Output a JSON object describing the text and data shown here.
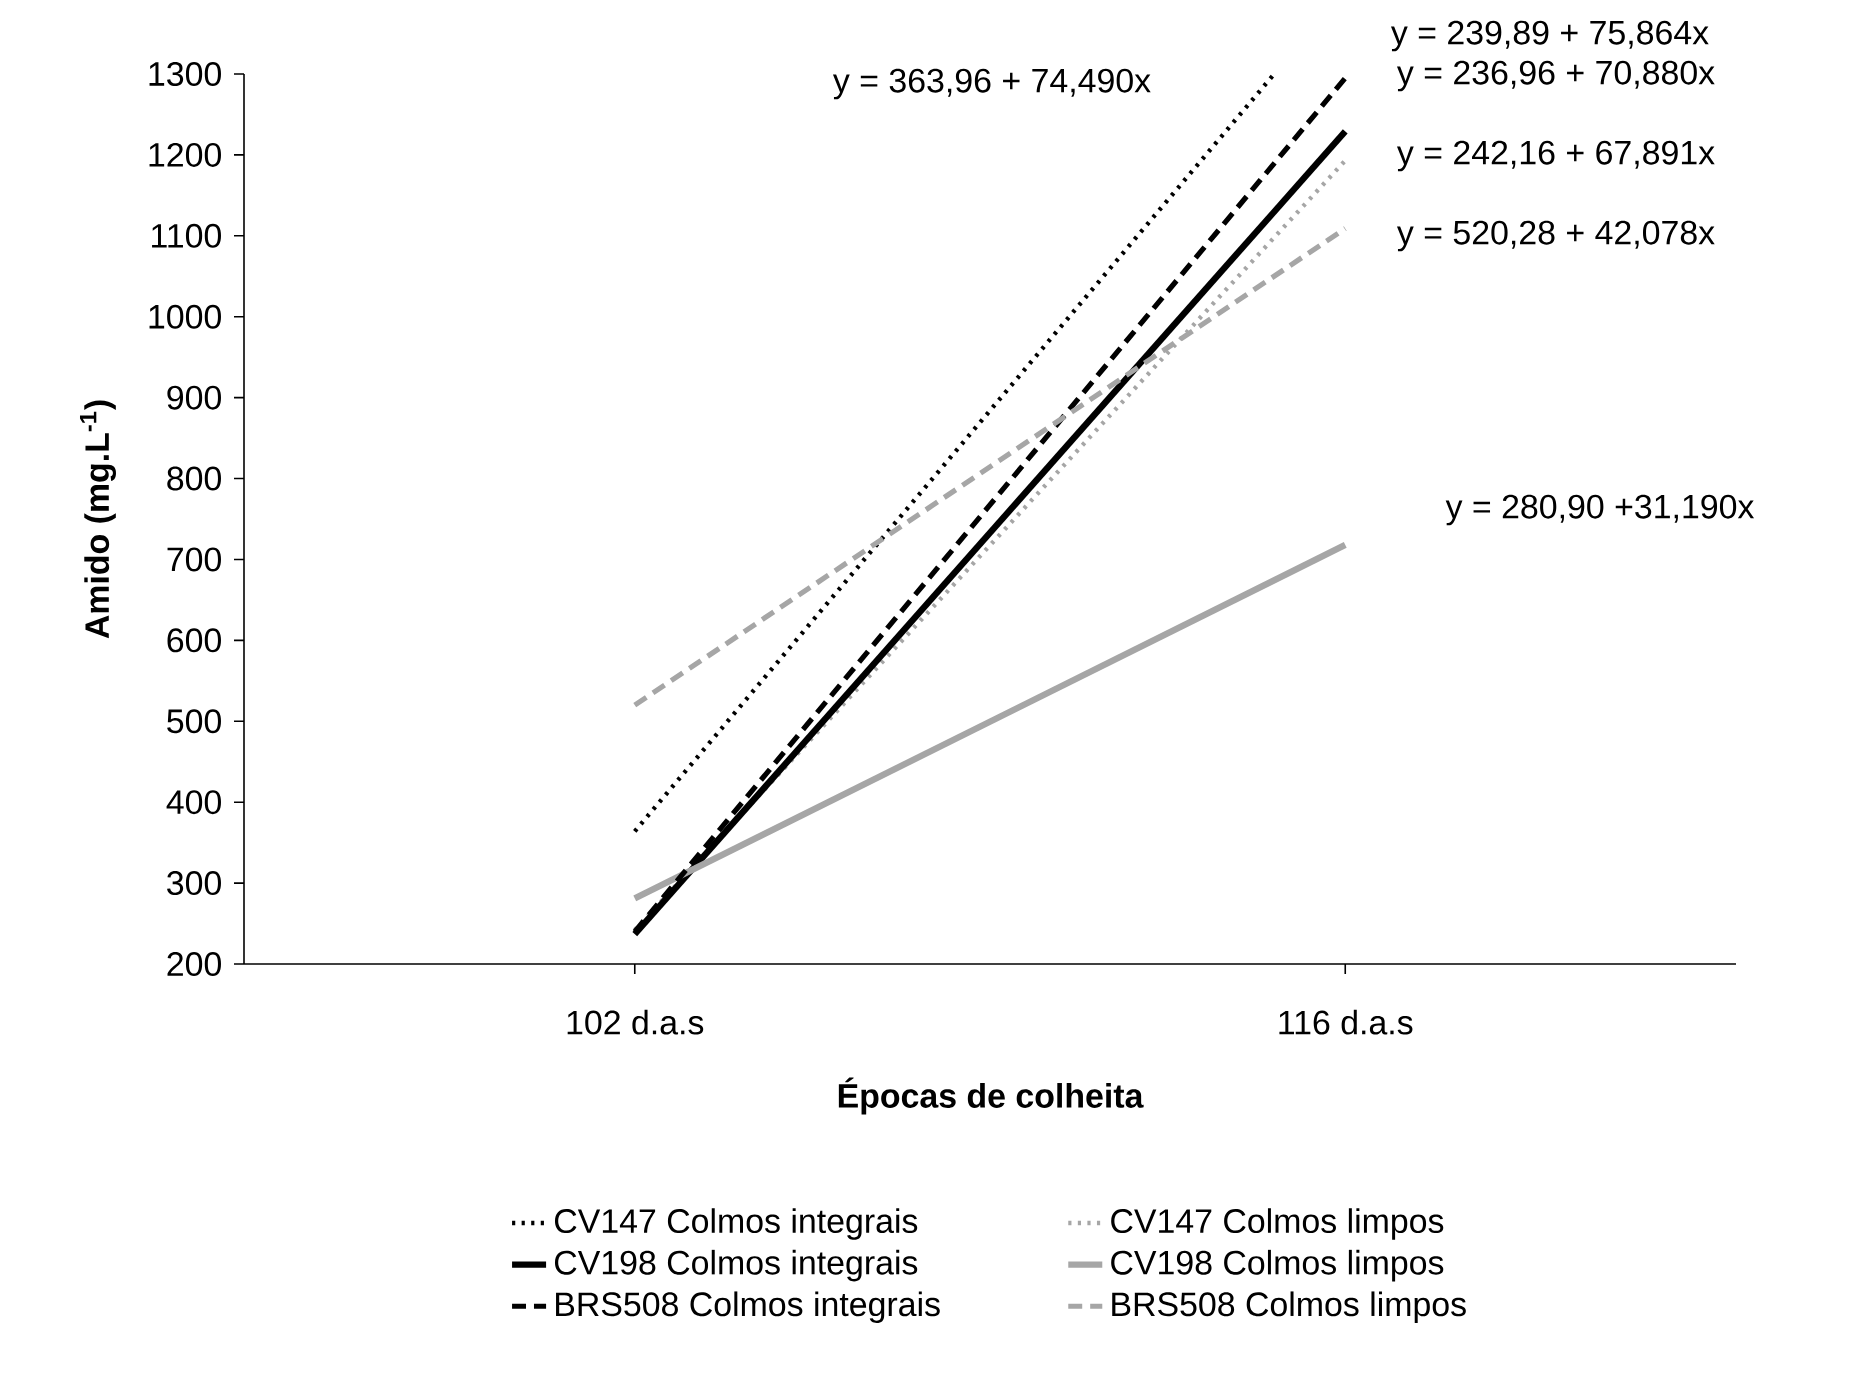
{
  "chart_data": {
    "type": "line",
    "xlabel": "Épocas de colheita",
    "ylabel": "Amido (mg.L$^{-1}$)",
    "xlim": [
      94.3,
      123.7
    ],
    "xticks": [
      {
        "value": 102,
        "label": "102 d.a.s"
      },
      {
        "value": 116,
        "label": "116 d.a.s"
      }
    ],
    "ylim": [
      200,
      1300
    ],
    "yticks": [
      200,
      300,
      400,
      500,
      600,
      700,
      800,
      900,
      1000,
      1100,
      1200,
      1300
    ],
    "marker": "none",
    "legend": "bottom",
    "series": [
      {
        "name": "CV147 Colmos integrais",
        "color": "#000000",
        "line_style": "dotted",
        "x": [
          102,
          114.6
        ],
        "values": [
          364,
          1300
        ]
      },
      {
        "name": "CV147 Colmos limpos",
        "color": "#a6a6a6",
        "line_style": "dotted",
        "x": [
          102,
          116
        ],
        "values": [
          242,
          1193
        ]
      },
      {
        "name": "CV198 Colmos integrais",
        "color": "#000000",
        "line_style": "solid",
        "x": [
          102,
          116
        ],
        "values": [
          237,
          1229
        ]
      },
      {
        "name": "CV198 Colmos limpos",
        "color": "#a6a6a6",
        "line_style": "solid",
        "x": [
          102,
          116
        ],
        "values": [
          281,
          718
        ]
      },
      {
        "name": "BRS508 Colmos integrais",
        "color": "#000000",
        "line_style": "dashed",
        "x": [
          102,
          116
        ],
        "values": [
          240,
          1295
        ]
      },
      {
        "name": "BRS508 Colmos limpos",
        "color": "#a6a6a6",
        "line_style": "dashed",
        "x": [
          102,
          116
        ],
        "values": [
          520,
          1109
        ]
      }
    ],
    "annotations": [
      "y = 363,96 + 74,490x",
      "y = 239,89 + 75,864x",
      "y = 236,96 + 70,880x",
      "y = 242,16 + 67,891x",
      "y = 520,28 + 42,078x",
      "y = 280,90 +31,190x"
    ]
  }
}
